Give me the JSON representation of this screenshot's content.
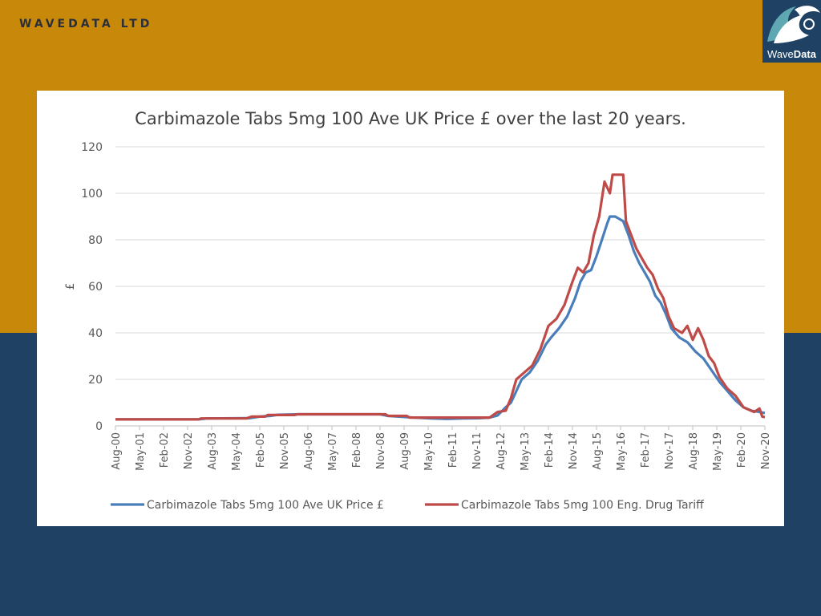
{
  "header": {
    "company": "WAVEDATA LTD"
  },
  "logo": {
    "word_prefix": "Wave",
    "word_suffix": "Data",
    "icon": "wave-logo-icon"
  },
  "colors": {
    "top_band": "#c8890b",
    "bottom_band": "#1f4264",
    "series_blue": "#4a7ebb",
    "series_red": "#be4b48"
  },
  "chart_data": {
    "type": "line",
    "title": "Carbimazole Tabs 5mg 100 Ave UK Price £ over the last 20 years.",
    "ylabel": "£",
    "xlabel": "",
    "ylim": [
      0,
      120
    ],
    "yticks": [
      0,
      20,
      40,
      60,
      80,
      100,
      120
    ],
    "grid": true,
    "legend_position": "bottom",
    "x_range": [
      "2000-08",
      "2020-11"
    ],
    "x_tick_labels": [
      "Aug-00",
      "May-01",
      "Feb-02",
      "Nov-02",
      "Aug-03",
      "May-04",
      "Feb-05",
      "Nov-05",
      "Aug-06",
      "May-07",
      "Feb-08",
      "Nov-08",
      "Aug-09",
      "May-10",
      "Feb-11",
      "Nov-11",
      "Aug-12",
      "May-13",
      "Feb-14",
      "Nov-14",
      "Aug-15",
      "May-16",
      "Feb-17",
      "Nov-17",
      "Aug-18",
      "May-19",
      "Feb-20",
      "Nov-20"
    ],
    "series": [
      {
        "name": "Carbimazole Tabs 5mg 100 Ave UK Price £",
        "color": "#4a7ebb",
        "points": [
          [
            "2000-08",
            2.8
          ],
          [
            "2003-03",
            2.8
          ],
          [
            "2003-06",
            3.2
          ],
          [
            "2004-10",
            3.3
          ],
          [
            "2005-02",
            4.0
          ],
          [
            "2005-06",
            4.3
          ],
          [
            "2005-09",
            4.8
          ],
          [
            "2006-05",
            5.0
          ],
          [
            "2008-01",
            5.0
          ],
          [
            "2008-11",
            5.0
          ],
          [
            "2009-02",
            4.3
          ],
          [
            "2009-06",
            4.0
          ],
          [
            "2009-10",
            3.7
          ],
          [
            "2010-06",
            3.2
          ],
          [
            "2010-12",
            3.0
          ],
          [
            "2011-06",
            3.2
          ],
          [
            "2011-12",
            3.3
          ],
          [
            "2012-04",
            3.6
          ],
          [
            "2012-07",
            4.5
          ],
          [
            "2012-10",
            8.0
          ],
          [
            "2012-12",
            10.0
          ],
          [
            "2013-02",
            15.0
          ],
          [
            "2013-04",
            20.0
          ],
          [
            "2013-07",
            23.0
          ],
          [
            "2013-10",
            28.0
          ],
          [
            "2014-01",
            35.0
          ],
          [
            "2014-03",
            38.0
          ],
          [
            "2014-06",
            42.0
          ],
          [
            "2014-09",
            47.0
          ],
          [
            "2014-12",
            55.0
          ],
          [
            "2015-02",
            62.0
          ],
          [
            "2015-04",
            66.0
          ],
          [
            "2015-06",
            67.0
          ],
          [
            "2015-08",
            73.0
          ],
          [
            "2015-10",
            80.0
          ],
          [
            "2015-12",
            87.0
          ],
          [
            "2016-01",
            90.0
          ],
          [
            "2016-03",
            90.0
          ],
          [
            "2016-06",
            88.0
          ],
          [
            "2016-08",
            82.0
          ],
          [
            "2016-10",
            75.0
          ],
          [
            "2016-12",
            70.0
          ],
          [
            "2017-02",
            66.0
          ],
          [
            "2017-04",
            62.0
          ],
          [
            "2017-06",
            56.0
          ],
          [
            "2017-08",
            53.0
          ],
          [
            "2017-10",
            48.0
          ],
          [
            "2017-12",
            42.0
          ],
          [
            "2018-03",
            38.0
          ],
          [
            "2018-06",
            36.0
          ],
          [
            "2018-09",
            32.0
          ],
          [
            "2018-12",
            29.0
          ],
          [
            "2019-03",
            24.0
          ],
          [
            "2019-06",
            19.0
          ],
          [
            "2019-09",
            15.0
          ],
          [
            "2019-12",
            11.0
          ],
          [
            "2020-03",
            8.0
          ],
          [
            "2020-06",
            6.5
          ],
          [
            "2020-09",
            6.0
          ],
          [
            "2020-11",
            5.5
          ]
        ]
      },
      {
        "name": "Carbimazole Tabs 5mg 100 Eng. Drug Tariff",
        "color": "#be4b48",
        "points": [
          [
            "2000-08",
            2.8
          ],
          [
            "2003-03",
            2.8
          ],
          [
            "2003-04",
            3.2
          ],
          [
            "2004-09",
            3.2
          ],
          [
            "2004-11",
            4.0
          ],
          [
            "2005-04",
            4.0
          ],
          [
            "2005-05",
            4.7
          ],
          [
            "2006-03",
            4.7
          ],
          [
            "2006-04",
            5.0
          ],
          [
            "2008-11",
            5.0
          ],
          [
            "2009-01",
            5.0
          ],
          [
            "2009-02",
            4.3
          ],
          [
            "2009-09",
            4.3
          ],
          [
            "2009-10",
            3.6
          ],
          [
            "2011-12",
            3.6
          ],
          [
            "2012-04",
            3.6
          ],
          [
            "2012-07",
            6.0
          ],
          [
            "2012-10",
            6.5
          ],
          [
            "2012-12",
            12.0
          ],
          [
            "2013-02",
            20.0
          ],
          [
            "2013-05",
            23.0
          ],
          [
            "2013-08",
            26.0
          ],
          [
            "2013-11",
            33.0
          ],
          [
            "2014-02",
            43.0
          ],
          [
            "2014-05",
            46.0
          ],
          [
            "2014-08",
            52.0
          ],
          [
            "2014-11",
            62.0
          ],
          [
            "2015-01",
            68.0
          ],
          [
            "2015-03",
            66.0
          ],
          [
            "2015-05",
            70.0
          ],
          [
            "2015-07",
            82.0
          ],
          [
            "2015-09",
            90.0
          ],
          [
            "2015-11",
            105.0
          ],
          [
            "2016-01",
            100.0
          ],
          [
            "2016-02",
            108.0
          ],
          [
            "2016-06",
            108.0
          ],
          [
            "2016-07",
            88.0
          ],
          [
            "2016-09",
            82.0
          ],
          [
            "2016-11",
            76.0
          ],
          [
            "2017-03",
            68.0
          ],
          [
            "2017-05",
            65.0
          ],
          [
            "2017-07",
            59.0
          ],
          [
            "2017-09",
            55.0
          ],
          [
            "2017-11",
            47.0
          ],
          [
            "2018-01",
            42.0
          ],
          [
            "2018-04",
            40.0
          ],
          [
            "2018-06",
            43.0
          ],
          [
            "2018-08",
            37.0
          ],
          [
            "2018-10",
            42.0
          ],
          [
            "2018-12",
            37.0
          ],
          [
            "2019-02",
            30.0
          ],
          [
            "2019-04",
            27.0
          ],
          [
            "2019-06",
            21.0
          ],
          [
            "2019-09",
            16.0
          ],
          [
            "2019-12",
            13.0
          ],
          [
            "2020-03",
            8.0
          ],
          [
            "2020-07",
            6.0
          ],
          [
            "2020-09",
            7.5
          ],
          [
            "2020-10",
            4.0
          ],
          [
            "2020-11",
            3.8
          ]
        ]
      }
    ]
  }
}
